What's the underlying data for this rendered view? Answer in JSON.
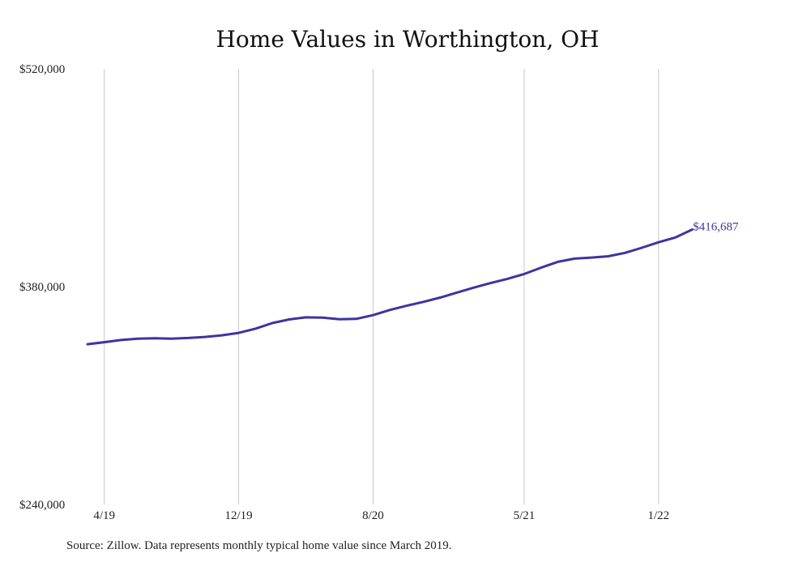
{
  "colors": {
    "line": "#3b35a0",
    "grid": "#c8c8c8",
    "text": "#222222",
    "background": "#ffffff"
  },
  "source_note": "Source: Zillow. Data represents monthly typical home value since March 2019.",
  "chart_data": {
    "type": "line",
    "title": "Home Values in Worthington, OH",
    "xlabel": "",
    "ylabel": "",
    "x_start": "2019-03",
    "x_end": "2022-04",
    "x_ticks": [
      {
        "label": "4/19",
        "date": "2019-04"
      },
      {
        "label": "12/19",
        "date": "2019-12"
      },
      {
        "label": "8/20",
        "date": "2020-08"
      },
      {
        "label": "5/21",
        "date": "2021-05"
      },
      {
        "label": "1/22",
        "date": "2022-01"
      }
    ],
    "y_ticks": [
      {
        "label": "$520,000",
        "value": 520000
      },
      {
        "label": "$380,000",
        "value": 380000
      },
      {
        "label": "$240,000",
        "value": 240000
      }
    ],
    "ylim": [
      240000,
      520000
    ],
    "grid": {
      "vertical": true,
      "horizontal": false
    },
    "series": [
      {
        "color": "#3b35a0",
        "end_label": "$416,687",
        "points": [
          {
            "x": "2019-03",
            "y": 343000
          },
          {
            "x": "2019-04",
            "y": 344300
          },
          {
            "x": "2019-05",
            "y": 345700
          },
          {
            "x": "2019-06",
            "y": 346600
          },
          {
            "x": "2019-07",
            "y": 346800
          },
          {
            "x": "2019-08",
            "y": 346600
          },
          {
            "x": "2019-09",
            "y": 347000
          },
          {
            "x": "2019-10",
            "y": 347700
          },
          {
            "x": "2019-11",
            "y": 348700
          },
          {
            "x": "2019-12",
            "y": 350300
          },
          {
            "x": "2020-01",
            "y": 353000
          },
          {
            "x": "2020-02",
            "y": 356600
          },
          {
            "x": "2020-03",
            "y": 358900
          },
          {
            "x": "2020-04",
            "y": 360300
          },
          {
            "x": "2020-05",
            "y": 360100
          },
          {
            "x": "2020-06",
            "y": 359100
          },
          {
            "x": "2020-07",
            "y": 359300
          },
          {
            "x": "2020-08",
            "y": 361700
          },
          {
            "x": "2020-09",
            "y": 365000
          },
          {
            "x": "2020-10",
            "y": 367700
          },
          {
            "x": "2020-11",
            "y": 370200
          },
          {
            "x": "2020-12",
            "y": 373000
          },
          {
            "x": "2021-01",
            "y": 376200
          },
          {
            "x": "2021-02",
            "y": 379400
          },
          {
            "x": "2021-03",
            "y": 382300
          },
          {
            "x": "2021-04",
            "y": 385000
          },
          {
            "x": "2021-05",
            "y": 388100
          },
          {
            "x": "2021-06",
            "y": 392200
          },
          {
            "x": "2021-07",
            "y": 395900
          },
          {
            "x": "2021-08",
            "y": 398000
          },
          {
            "x": "2021-09",
            "y": 398700
          },
          {
            "x": "2021-10",
            "y": 399500
          },
          {
            "x": "2021-11",
            "y": 401700
          },
          {
            "x": "2021-12",
            "y": 405000
          },
          {
            "x": "2022-01",
            "y": 408500
          },
          {
            "x": "2022-02",
            "y": 411600
          },
          {
            "x": "2022-03",
            "y": 416687
          }
        ]
      }
    ]
  }
}
